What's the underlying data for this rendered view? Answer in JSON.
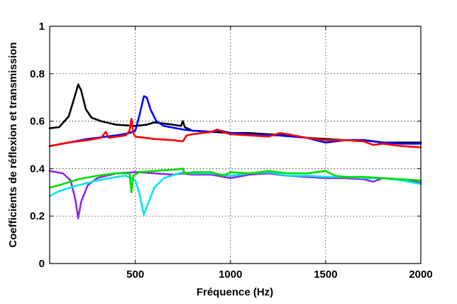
{
  "chart_data": {
    "type": "line",
    "xlabel": "Fréquence (Hz)",
    "ylabel": "Coefficients de réflexion et transmission",
    "xlim": [
      50,
      2000
    ],
    "ylim": [
      0,
      1
    ],
    "x_ticks": [
      500,
      1000,
      1500,
      2000
    ],
    "y_ticks": [
      0,
      0.2,
      0.4,
      0.6,
      0.8,
      1
    ],
    "x_tick_labels": [
      "500",
      "1000",
      "1500",
      "2000"
    ],
    "y_tick_labels": [
      "0",
      "0.2",
      "0.4",
      "0.6",
      "0.8",
      "1"
    ],
    "grid": true,
    "legend": "none",
    "series": [
      {
        "color": "#000000",
        "points": [
          [
            50,
            0.57
          ],
          [
            100,
            0.575
          ],
          [
            150,
            0.62
          ],
          [
            180,
            0.7
          ],
          [
            200,
            0.755
          ],
          [
            215,
            0.73
          ],
          [
            240,
            0.65
          ],
          [
            270,
            0.615
          ],
          [
            320,
            0.6
          ],
          [
            400,
            0.585
          ],
          [
            500,
            0.58
          ],
          [
            560,
            0.585
          ],
          [
            600,
            0.595
          ],
          [
            650,
            0.59
          ],
          [
            700,
            0.585
          ],
          [
            740,
            0.58
          ],
          [
            750,
            0.6
          ],
          [
            760,
            0.575
          ],
          [
            800,
            0.56
          ],
          [
            900,
            0.555
          ],
          [
            1000,
            0.55
          ],
          [
            1100,
            0.55
          ],
          [
            1200,
            0.545
          ],
          [
            1300,
            0.54
          ],
          [
            1400,
            0.53
          ],
          [
            1500,
            0.525
          ],
          [
            1600,
            0.52
          ],
          [
            1700,
            0.52
          ],
          [
            1800,
            0.51
          ],
          [
            1900,
            0.51
          ],
          [
            2000,
            0.51
          ]
        ]
      },
      {
        "color": "#0000ff",
        "points": [
          [
            50,
            0.495
          ],
          [
            150,
            0.51
          ],
          [
            250,
            0.525
          ],
          [
            300,
            0.53
          ],
          [
            400,
            0.54
          ],
          [
            470,
            0.55
          ],
          [
            500,
            0.56
          ],
          [
            520,
            0.62
          ],
          [
            545,
            0.705
          ],
          [
            560,
            0.7
          ],
          [
            580,
            0.65
          ],
          [
            610,
            0.6
          ],
          [
            650,
            0.58
          ],
          [
            750,
            0.565
          ],
          [
            800,
            0.56
          ],
          [
            900,
            0.555
          ],
          [
            950,
            0.56
          ],
          [
            1000,
            0.55
          ],
          [
            1100,
            0.545
          ],
          [
            1250,
            0.54
          ],
          [
            1400,
            0.53
          ],
          [
            1500,
            0.51
          ],
          [
            1600,
            0.52
          ],
          [
            1700,
            0.52
          ],
          [
            1800,
            0.51
          ],
          [
            1900,
            0.505
          ],
          [
            2000,
            0.505
          ]
        ]
      },
      {
        "color": "#ff0000",
        "points": [
          [
            50,
            0.495
          ],
          [
            150,
            0.51
          ],
          [
            250,
            0.52
          ],
          [
            320,
            0.53
          ],
          [
            345,
            0.555
          ],
          [
            360,
            0.53
          ],
          [
            450,
            0.54
          ],
          [
            470,
            0.56
          ],
          [
            480,
            0.61
          ],
          [
            490,
            0.55
          ],
          [
            500,
            0.535
          ],
          [
            600,
            0.525
          ],
          [
            700,
            0.52
          ],
          [
            750,
            0.515
          ],
          [
            770,
            0.54
          ],
          [
            800,
            0.545
          ],
          [
            900,
            0.555
          ],
          [
            930,
            0.565
          ],
          [
            960,
            0.555
          ],
          [
            1000,
            0.545
          ],
          [
            1100,
            0.54
          ],
          [
            1200,
            0.535
          ],
          [
            1260,
            0.55
          ],
          [
            1300,
            0.545
          ],
          [
            1400,
            0.53
          ],
          [
            1500,
            0.52
          ],
          [
            1600,
            0.52
          ],
          [
            1700,
            0.515
          ],
          [
            1750,
            0.5
          ],
          [
            1800,
            0.505
          ],
          [
            1900,
            0.495
          ],
          [
            2000,
            0.49
          ]
        ]
      },
      {
        "color": "#8a2be2",
        "points": [
          [
            50,
            0.39
          ],
          [
            120,
            0.38
          ],
          [
            160,
            0.35
          ],
          [
            185,
            0.27
          ],
          [
            200,
            0.19
          ],
          [
            215,
            0.26
          ],
          [
            250,
            0.33
          ],
          [
            300,
            0.36
          ],
          [
            400,
            0.38
          ],
          [
            500,
            0.385
          ],
          [
            520,
            0.385
          ],
          [
            600,
            0.38
          ],
          [
            700,
            0.375
          ],
          [
            750,
            0.38
          ],
          [
            800,
            0.375
          ],
          [
            900,
            0.375
          ],
          [
            1000,
            0.36
          ],
          [
            1100,
            0.375
          ],
          [
            1200,
            0.38
          ],
          [
            1300,
            0.37
          ],
          [
            1400,
            0.365
          ],
          [
            1500,
            0.36
          ],
          [
            1600,
            0.36
          ],
          [
            1700,
            0.355
          ],
          [
            1750,
            0.345
          ],
          [
            1800,
            0.36
          ],
          [
            1900,
            0.355
          ],
          [
            2000,
            0.34
          ]
        ]
      },
      {
        "color": "#00e5ee",
        "points": [
          [
            50,
            0.285
          ],
          [
            100,
            0.305
          ],
          [
            200,
            0.33
          ],
          [
            300,
            0.35
          ],
          [
            400,
            0.365
          ],
          [
            450,
            0.37
          ],
          [
            500,
            0.35
          ],
          [
            520,
            0.3
          ],
          [
            545,
            0.205
          ],
          [
            560,
            0.24
          ],
          [
            600,
            0.32
          ],
          [
            650,
            0.36
          ],
          [
            750,
            0.385
          ],
          [
            800,
            0.38
          ],
          [
            900,
            0.38
          ],
          [
            1000,
            0.37
          ],
          [
            1100,
            0.38
          ],
          [
            1200,
            0.385
          ],
          [
            1300,
            0.37
          ],
          [
            1400,
            0.37
          ],
          [
            1500,
            0.365
          ],
          [
            1600,
            0.365
          ],
          [
            1700,
            0.36
          ],
          [
            1800,
            0.36
          ],
          [
            1900,
            0.35
          ],
          [
            2000,
            0.335
          ]
        ]
      },
      {
        "color": "#00dd00",
        "points": [
          [
            50,
            0.32
          ],
          [
            100,
            0.33
          ],
          [
            200,
            0.355
          ],
          [
            300,
            0.37
          ],
          [
            400,
            0.38
          ],
          [
            470,
            0.38
          ],
          [
            480,
            0.3
          ],
          [
            490,
            0.37
          ],
          [
            520,
            0.385
          ],
          [
            600,
            0.39
          ],
          [
            700,
            0.395
          ],
          [
            750,
            0.4
          ],
          [
            760,
            0.38
          ],
          [
            800,
            0.385
          ],
          [
            900,
            0.385
          ],
          [
            960,
            0.37
          ],
          [
            1000,
            0.385
          ],
          [
            1100,
            0.38
          ],
          [
            1200,
            0.39
          ],
          [
            1300,
            0.38
          ],
          [
            1400,
            0.38
          ],
          [
            1450,
            0.385
          ],
          [
            1500,
            0.39
          ],
          [
            1550,
            0.37
          ],
          [
            1600,
            0.365
          ],
          [
            1700,
            0.365
          ],
          [
            1800,
            0.36
          ],
          [
            1900,
            0.355
          ],
          [
            2000,
            0.35
          ]
        ]
      }
    ]
  }
}
